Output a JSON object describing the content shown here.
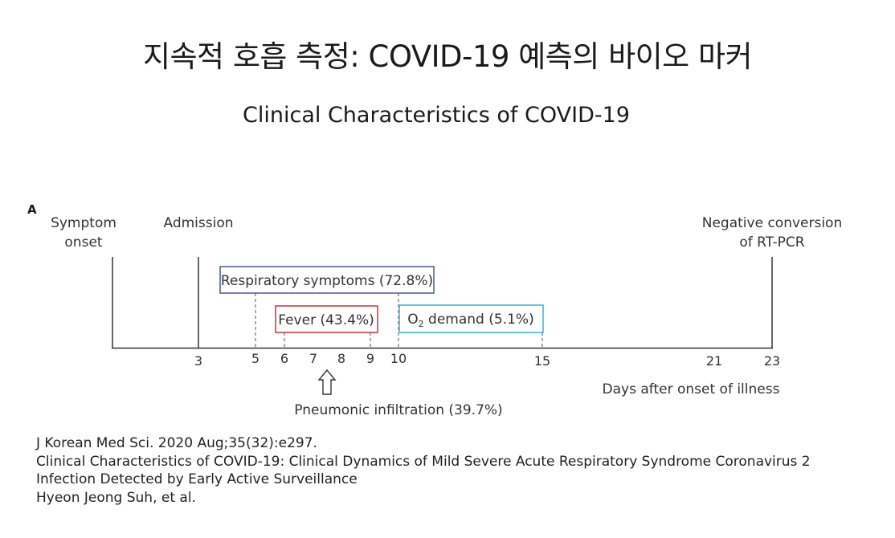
{
  "title": "지속적 호흡 측정: COVID-19 예측의 바이오 마커",
  "subtitle": "Clinical Characteristics of COVID-19",
  "diagram": {
    "panel_letter": "A",
    "events": {
      "symptom_onset_line1": "Symptom",
      "symptom_onset_line2": "onset",
      "admission": "Admission",
      "negative_line1": "Negative conversion",
      "negative_line2": "of RT-PCR"
    },
    "bars": {
      "respiratory": "Respiratory symptoms (72.8%)",
      "fever": "Fever (43.4%)",
      "o2_prefix": "O",
      "o2_sub": "2",
      "o2_suffix": " demand (5.1%)"
    },
    "ticks": [
      "3",
      "5",
      "6",
      "7",
      "8",
      "9",
      "10",
      "15",
      "21",
      "23"
    ],
    "axis_label": "Days after onset of illness",
    "pneumonic": "Pneumonic infiltration (39.7%)",
    "colors": {
      "respiratory": "#4a5a8c",
      "fever": "#c8323c",
      "o2": "#3aaed8"
    }
  },
  "citation": {
    "line1": "J Korean Med Sci. 2020 Aug;35(32):e297.",
    "line2": "Clinical Characteristics of COVID-19: Clinical Dynamics of Mild Severe Acute Respiratory Syndrome Coronavirus 2",
    "line3": "Infection Detected by Early Active Surveillance",
    "line4": "Hyeon Jeong Suh, et al."
  }
}
